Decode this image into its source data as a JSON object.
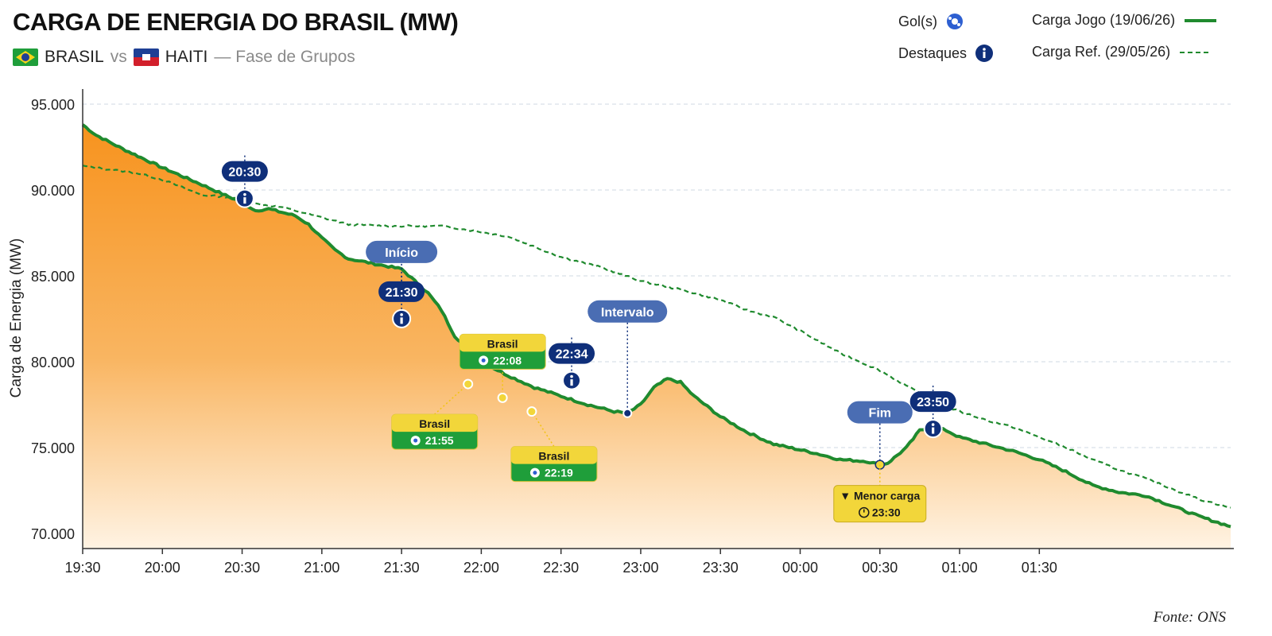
{
  "header": {
    "title": "CARGA DE ENERGIA DO BRASIL (MW)",
    "team_home": "BRASIL",
    "vs": "vs",
    "team_away": "HAITI",
    "stage": "— Fase de Grupos"
  },
  "legend": {
    "goals_label": "Gol(s)",
    "highlights_label": "Destaques",
    "series_game": "Carga Jogo (19/06/26)",
    "series_ref": "Carga Ref. (29/05/26)"
  },
  "source": "Fonte: ONS",
  "colors": {
    "green": "#1f8a2e",
    "orange": "#f7931e",
    "navy": "#0f2f7a",
    "callout_blue": "#4a6db3",
    "yellow": "#f2d63a"
  },
  "chart_data": {
    "type": "line",
    "ylabel": "Carga de Energia (MW)",
    "ylim": [
      70000,
      95000
    ],
    "yticks": [
      95000,
      90000,
      85000,
      80000,
      75000,
      70000
    ],
    "ytick_labels": [
      "95.000",
      "90.000",
      "85.000",
      "80.000",
      "75.000",
      "70.000"
    ],
    "xticks": [
      "19:30",
      "20:00",
      "20:30",
      "21:00",
      "21:30",
      "22:00",
      "22:30",
      "23:00",
      "23:30",
      "00:00",
      "00:30",
      "01:00",
      "01:30"
    ],
    "xrange_minutes": [
      0,
      360
    ],
    "grid": "horizontal",
    "legend_position": "top-right",
    "series": [
      {
        "name": "Carga Jogo (19/06/26)",
        "style": "solid",
        "points": [
          [
            0,
            93800
          ],
          [
            5,
            93200
          ],
          [
            15,
            92400
          ],
          [
            30,
            91300
          ],
          [
            45,
            90300
          ],
          [
            55,
            89600
          ],
          [
            60,
            89300
          ],
          [
            65,
            88800
          ],
          [
            70,
            88900
          ],
          [
            80,
            88500
          ],
          [
            85,
            88000
          ],
          [
            90,
            87200
          ],
          [
            95,
            86500
          ],
          [
            100,
            86000
          ],
          [
            110,
            85700
          ],
          [
            120,
            85400
          ],
          [
            130,
            84000
          ],
          [
            135,
            83000
          ],
          [
            140,
            81500
          ],
          [
            150,
            80000
          ],
          [
            160,
            79200
          ],
          [
            170,
            78500
          ],
          [
            180,
            78000
          ],
          [
            190,
            77500
          ],
          [
            200,
            77100
          ],
          [
            205,
            77000
          ],
          [
            210,
            77500
          ],
          [
            215,
            78500
          ],
          [
            220,
            79000
          ],
          [
            225,
            78800
          ],
          [
            230,
            78000
          ],
          [
            240,
            76800
          ],
          [
            250,
            75900
          ],
          [
            260,
            75200
          ],
          [
            275,
            74700
          ],
          [
            285,
            74300
          ],
          [
            295,
            74200
          ],
          [
            300,
            74000
          ],
          [
            303,
            74100
          ],
          [
            310,
            75000
          ],
          [
            315,
            76000
          ],
          [
            320,
            76200
          ],
          [
            325,
            76000
          ],
          [
            330,
            75600
          ],
          [
            340,
            75200
          ],
          [
            350,
            74800
          ],
          [
            360,
            74300
          ],
          [
            370,
            73600
          ],
          [
            380,
            72800
          ],
          [
            390,
            72400
          ],
          [
            400,
            72200
          ],
          [
            410,
            71600
          ],
          [
            420,
            71000
          ],
          [
            432,
            70400
          ]
        ]
      },
      {
        "name": "Carga Ref. (29/05/26)",
        "style": "dashed",
        "points": [
          [
            0,
            91400
          ],
          [
            10,
            91200
          ],
          [
            20,
            91000
          ],
          [
            30,
            90600
          ],
          [
            40,
            90000
          ],
          [
            45,
            89700
          ],
          [
            55,
            89600
          ],
          [
            65,
            89200
          ],
          [
            75,
            89000
          ],
          [
            85,
            88600
          ],
          [
            100,
            88000
          ],
          [
            115,
            87900
          ],
          [
            125,
            87900
          ],
          [
            135,
            87900
          ],
          [
            140,
            87800
          ],
          [
            160,
            87300
          ],
          [
            180,
            86100
          ],
          [
            195,
            85500
          ],
          [
            210,
            84700
          ],
          [
            225,
            84200
          ],
          [
            240,
            83600
          ],
          [
            250,
            83000
          ],
          [
            260,
            82600
          ],
          [
            270,
            81800
          ],
          [
            285,
            80500
          ],
          [
            300,
            79500
          ],
          [
            310,
            78600
          ],
          [
            320,
            77700
          ],
          [
            330,
            77100
          ],
          [
            340,
            76600
          ],
          [
            350,
            76200
          ],
          [
            360,
            75600
          ],
          [
            370,
            75000
          ],
          [
            380,
            74300
          ],
          [
            390,
            73700
          ],
          [
            400,
            73200
          ],
          [
            410,
            72600
          ],
          [
            420,
            72000
          ],
          [
            432,
            71500
          ]
        ]
      }
    ],
    "highlights": [
      {
        "label": "20:30",
        "t": 61,
        "y": 89600
      },
      {
        "label": "21:30",
        "t": 120,
        "y": 82600,
        "callout": "Início"
      },
      {
        "label": "22:34",
        "t": 184,
        "y": 79000
      },
      {
        "label": "23:50",
        "t": 320,
        "y": 76200
      }
    ],
    "annotations": [
      {
        "label": "Intervalo",
        "t": 205,
        "y": 77000
      },
      {
        "label": "Fim",
        "t": 300,
        "y": 74000
      }
    ],
    "goals": [
      {
        "team": "Brasil",
        "time": "21:55",
        "t": 145,
        "y": 78700
      },
      {
        "team": "Brasil",
        "time": "22:08",
        "t": 158,
        "y": 77900
      },
      {
        "team": "Brasil",
        "time": "22:19",
        "t": 169,
        "y": 77100
      }
    ],
    "min_load": {
      "label": "▼ Menor carga",
      "time": "23:30",
      "t": 300,
      "y": 74000
    }
  }
}
